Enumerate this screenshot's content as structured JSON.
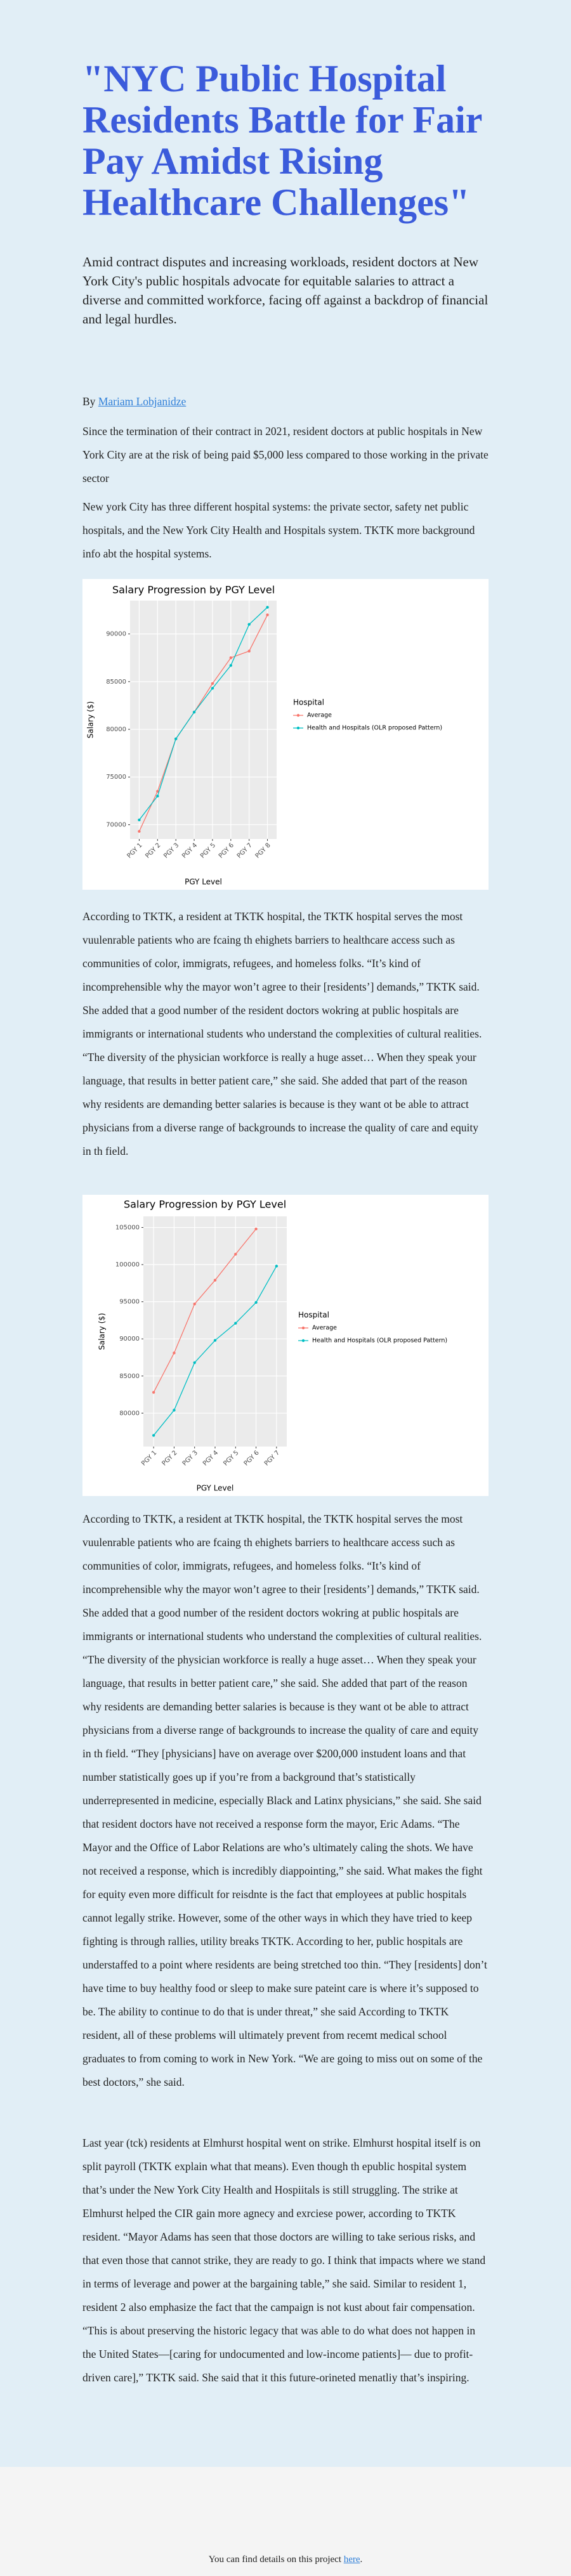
{
  "article": {
    "title": "\"NYC Public Hospital Residents Battle for Fair Pay Amidst Rising Healthcare Challenges\"",
    "subtitle": "Amid contract disputes and increasing workloads, resident doctors at New York City's public hospitals advocate for equitable salaries to attract a diverse and committed workforce, facing off against a backdrop of financial and legal hurdles.",
    "byline_prefix": "By",
    "author": "Mariam Lobjanidze",
    "paragraphs": [
      "Since the termination of their contract in 2021, resident doctors at public hospitals in New York City are at the risk of being paid $5,000 less compared to those working in the private sector",
      "New york City has three different hospital systems: the private sector, safety net public hospitals, and the New York City Health and Hospitals system. TKTK more background info abt the hospital systems.",
      "According to TKTK, a resident at TKTK hospital, the TKTK hospital serves the most vuulenrable patients who are fcaing th ehighets barriers to healthcare access such as communities of color, immigrats, refugees, and homeless folks. “It’s kind of incomprehensible why the mayor won’t agree to their [residents’] demands,” TKTK said. She added that a good number of the resident doctors wokring at public hospitals are immigrants or international students who understand the complexities of cultural realities. “The diversity of the physician workforce is really a huge asset… When they speak your language, that results in better patient care,” she said. She added that part of the reason why residents are demanding better salaries is because is they want ot be able to attract physicians from a diverse range of backgrounds to increase the quality of care and equity in th field.",
      "According to TKTK, a resident at TKTK hospital, the TKTK hospital serves the most vuulenrable patients who are fcaing th ehighets barriers to healthcare access such as communities of color, immigrats, refugees, and homeless folks. “It’s kind of incomprehensible why the mayor won’t agree to their [residents’] demands,” TKTK said. She added that a good number of the resident doctors wokring at public hospitals are immigrants or international students who understand the complexities of cultural realities. “The diversity of the physician workforce is really a huge asset… When they speak your language, that results in better patient care,” she said. She added that part of the reason why residents are demanding better salaries is because is they want ot be able to attract physicians from a diverse range of backgrounds to increase the quality of care and equity in th field. “They [physicians] have on average over $200,000 instudent loans and that number statistically goes up if you’re from a background that’s statistically underrepresented in medicine, especially Black and Latinx physicians,” she said. She said that resident doctors have not received a response form the mayor, Eric Adams. “The Mayor and the Office of Labor Relations are who’s ultimately caling the shots. We have not received a response, which is incredibly diappointing,” she said. What makes the fight for equity even more difficult for reisdnte is the fact that employees at public hospitals cannot legally strike. However, some of the other ways in which they have tried to keep fighting is through rallies, utility breaks TKTK. According to her, public hospitals are understaffed to a point where residents are being stretched too thin. “They [residents] don’t have time to buy healthy food or sleep to make sure pateint care is where it’s supposed to be. The ability to continue to do that is under threat,” she said According to TKTK resident, all of these problems will ultimately prevent from recemt medical school graduates to from coming to work in New York. “We are going to miss out on some of the best doctors,” she said.",
      "Last year (tck) residents at Elmhurst hospital went on strike. Elmhurst hospital itself is on split payroll (TKTK explain what that means). Even though th epublic hospital system that’s under the New York City Health and Hospiitals is still struggling. The strike at Elmhurst helped the CIR gain more agnecy and exrciese power, according to TKTK resident. “Mayor Adams has seen that those doctors are willing to take serious risks, and that even those that cannot strike, they are ready to go. I think that impacts where we stand in terms of leverage and power at the bargaining table,” she said. Similar to resident 1, resident 2 also emphasize the fact that the campaign is not kust about fair compensation. “This is about preserving the historic legacy that was able to do what does not happen in the United States—[caring for undocumented and low-income patients]— due to profit-driven care],” TKTK said. She said that it this future-orineted menatliy that’s inspiring."
    ],
    "footer_text": "You can find details on this project",
    "footer_link": "here",
    "footer_end": "."
  },
  "charts": [
    {
      "type": "line",
      "title": "Salary Progression by PGY Level",
      "x_label": "PGY Level",
      "y_label": "Salary ($)",
      "legend_title": "Hospital",
      "legend": "right",
      "grid": true,
      "categories": [
        "PGY 1",
        "PGY 2",
        "PGY 3",
        "PGY 4",
        "PGY 5",
        "PGY 6",
        "PGY 7",
        "PGY 8"
      ],
      "ylim": [
        68500,
        93500
      ],
      "yticks": [
        70000,
        75000,
        80000,
        85000,
        90000
      ],
      "series": [
        {
          "name": "Average",
          "color": "#F8766D",
          "values": [
            69300,
            73500,
            79000,
            81800,
            84800,
            87500,
            88200,
            92000
          ]
        },
        {
          "name": "Health and Hospitals (OLR proposed Pattern)",
          "color": "#00BFC4",
          "values": [
            70500,
            73000,
            79000,
            81800,
            84300,
            86700,
            91000,
            92800
          ]
        }
      ]
    },
    {
      "type": "line",
      "title": "Salary Progression by PGY Level",
      "x_label": "PGY Level",
      "y_label": "Salary ($)",
      "legend_title": "Hospital",
      "legend": "right",
      "grid": true,
      "categories": [
        "PGY 1",
        "PGY 2",
        "PGY 3",
        "PGY 4",
        "PGY 5",
        "PGY 6",
        "PGY 7"
      ],
      "ylim": [
        75500,
        106500
      ],
      "yticks": [
        80000,
        85000,
        90000,
        95000,
        100000,
        105000
      ],
      "series": [
        {
          "name": "Average",
          "color": "#F8766D",
          "values": [
            82800,
            88100,
            94700,
            97900,
            101400,
            104800,
            null
          ]
        },
        {
          "name": "Health and Hospitals (OLR proposed Pattern)",
          "color": "#00BFC4",
          "values": [
            77000,
            80400,
            86800,
            89800,
            92100,
            94900,
            99800
          ]
        }
      ]
    }
  ]
}
